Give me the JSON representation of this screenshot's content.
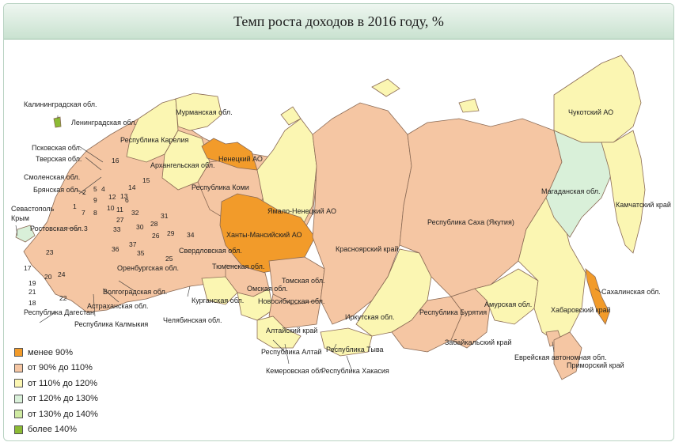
{
  "title": "Темп роста доходов в 2016 году, %",
  "colors": {
    "lt90": "#f29b2a",
    "90_110": "#f5c6a3",
    "110_120": "#fbf6b2",
    "120_130": "#d9f0d9",
    "130_140": "#cfeaa2",
    "gt140": "#8cbb34",
    "sea": "#ffffff"
  },
  "legend": [
    {
      "label": "менее 90%",
      "color": "#f29b2a"
    },
    {
      "label": "от 90% до 110%",
      "color": "#f5c6a3"
    },
    {
      "label": "от 110% до 120%",
      "color": "#fbf6b2"
    },
    {
      "label": "от 120% до 130%",
      "color": "#d9f0d9"
    },
    {
      "label": "от 130% до 140%",
      "color": "#cfeaa2"
    },
    {
      "label": "более 140%",
      "color": "#8cbb34"
    }
  ],
  "labels": {
    "kaliningrad": "Калининградская обл.",
    "leningrad": "Ленинградская обл.",
    "murmansk": "Мурманская обл.",
    "karelia": "Республика Карелия",
    "pskov": "Псковская обл.",
    "tver": "Тверская обл.",
    "smolensk": "Смоленская обл.",
    "bryansk": "Брянская обл.",
    "sevastopol": "Севастополь",
    "crimea": "Крым",
    "rostov": "Ростовская обл.",
    "arkhangelsk": "Архангельская обл.",
    "nenets": "Ненецкий АО",
    "komi": "Республика Коми",
    "yamal": "Ямало-Ненецкий АО",
    "khanty": "Ханты-Мансийский АО",
    "sverdlovsk": "Свердловская обл.",
    "tyumen": "Тюменская обл.",
    "orenburg": "Оренбургская обл.",
    "volgograd": "Волгоградская обл.",
    "astrakhan": "Астраханская обл.",
    "kalmykia": "Республика Калмыкия",
    "dagestan": "Республика Дагестан",
    "chelyabinsk": "Челябинская обл.",
    "kurgan": "Курганская обл.",
    "omsk": "Омская обл.",
    "tomsk": "Томская обл.",
    "novosibirsk": "Новосибирская обл.",
    "altai_krai": "Алтайский край",
    "altai_rep": "Республика Алтай",
    "kemerovo": "Кемеровская обл.",
    "krasnoyarsk": "Красноярский край",
    "tyva": "Республика Тыва",
    "khakassia": "Республика Хакасия",
    "irkutsk": "Иркутская обл.",
    "buryatia": "Республика Бурятия",
    "zabaikal": "Забайкальский край",
    "yakutia": "Республика Саха (Якутия)",
    "amur": "Амурская обл.",
    "jewish": "Еврейская автономная обл.",
    "khabarovsk": "Хабаровский край",
    "primorsky": "Приморский край",
    "sakhalin": "Сахалинская обл.",
    "magadan": "Магаданская обл.",
    "kamchatka": "Камчатский край",
    "chukotka": "Чукотский АО"
  },
  "region_numbers": [
    "16",
    "15",
    "14",
    "13",
    "12",
    "11",
    "10",
    "9",
    "8",
    "7",
    "6",
    "5",
    "4",
    "3",
    "2",
    "1",
    "31",
    "32",
    "33",
    "34",
    "35",
    "36",
    "37",
    "29",
    "30",
    "28",
    "27",
    "26",
    "25",
    "24",
    "23",
    "22",
    "21",
    "20",
    "19",
    "18",
    "17"
  ]
}
